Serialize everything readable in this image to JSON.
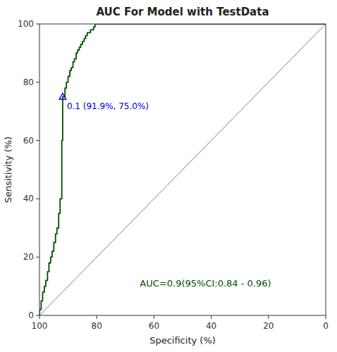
{
  "chart_data": {
    "type": "line",
    "title": "AUC For Model with TestData",
    "xlabel": "Specificity (%)",
    "ylabel": "Sensitivity (%)",
    "xlim": [
      100,
      0
    ],
    "ylim": [
      0,
      100
    ],
    "xticks": [
      100,
      80,
      60,
      40,
      20,
      0
    ],
    "yticks": [
      0,
      20,
      40,
      60,
      80,
      100
    ],
    "grid": false,
    "series": [
      {
        "type": "line",
        "color": "#aaaaaa",
        "line_style": "solid",
        "x": [
          100,
          0
        ],
        "values": [
          0,
          100
        ]
      },
      {
        "type": "line",
        "color": "#005000",
        "line_style": "solid",
        "x": [
          100,
          100,
          99.4,
          99.4,
          98.9,
          98.9,
          98.3,
          98.3,
          97.8,
          97.8,
          97.2,
          97.2,
          96.7,
          96.7,
          96.1,
          96.1,
          95.6,
          95.6,
          95.0,
          95.0,
          94.4,
          94.4,
          93.9,
          93.9,
          93.3,
          93.3,
          92.8,
          92.8,
          92.2,
          92.2,
          91.9,
          91.9,
          91.1,
          91.1,
          90.6,
          90.6,
          90.0,
          90.0,
          89.4,
          89.4,
          88.9,
          88.9,
          88.3,
          88.3,
          87.8,
          87.8,
          87.2,
          87.2,
          86.7,
          86.7,
          86.1,
          86.1,
          85.6,
          85.6,
          85.0,
          85.0,
          84.4,
          84.4,
          83.9,
          83.9,
          83.3,
          83.3,
          82.8,
          82.8,
          82.2,
          82.2,
          81.7,
          81.7,
          81.1,
          81.1,
          80.6,
          80.6,
          80.0,
          80.0,
          79.4,
          79.4,
          78.3,
          78.3,
          76.7,
          76.7,
          75.0,
          75.0,
          0,
          0
        ],
        "values": [
          0,
          2,
          2,
          5,
          5,
          8,
          8,
          10,
          10,
          12,
          12,
          15,
          15,
          18,
          18,
          20,
          20,
          22,
          22,
          25,
          25,
          28,
          28,
          30,
          30,
          35,
          35,
          40,
          40,
          60,
          60,
          75,
          75,
          78,
          78,
          80,
          80,
          82,
          82,
          84,
          84,
          85,
          85,
          87,
          87,
          88,
          88,
          90,
          90,
          91,
          91,
          92,
          92,
          93,
          93,
          94,
          94,
          95,
          95,
          96,
          96,
          97,
          97,
          97,
          97,
          98,
          98,
          98,
          98,
          99,
          99,
          100,
          100,
          100,
          100,
          100,
          100,
          100,
          100,
          100,
          100,
          100,
          100,
          100
        ]
      },
      {
        "type": "scatter",
        "color": "#0000cc",
        "marker": "triangle",
        "x": [
          91.9
        ],
        "values": [
          75.0
        ]
      }
    ],
    "annotations": [
      {
        "text": "0.1 (91.9%, 75.0%)",
        "color": "#0000cc"
      },
      {
        "text": "AUC=0.9(95%CI:0.84 - 0.96)",
        "color": "#005000"
      }
    ]
  }
}
